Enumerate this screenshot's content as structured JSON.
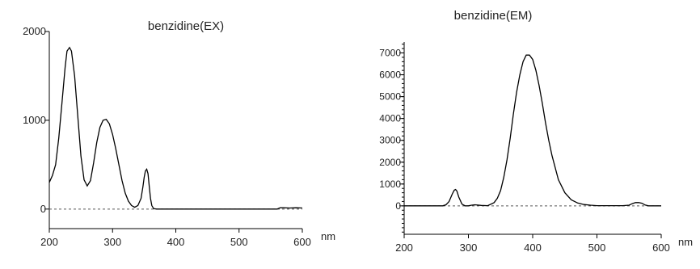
{
  "chart_data": [
    {
      "type": "line",
      "title": "benzidine(EX)",
      "xlabel": "",
      "ylabel": "",
      "x_unit": "nm",
      "xlim": [
        200,
        600
      ],
      "ylim": [
        -220,
        2000
      ],
      "x_ticks": [
        200,
        300,
        400,
        500,
        600
      ],
      "y_ticks": [
        0,
        1000,
        2000
      ],
      "zero_line": "dashed",
      "grid": false,
      "series": [
        {
          "x": [
            200,
            205,
            210,
            215,
            220,
            225,
            228,
            232,
            235,
            240,
            245,
            250,
            255,
            260,
            265,
            270,
            275,
            280,
            285,
            290,
            295,
            300,
            305,
            310,
            315,
            320,
            325,
            330,
            335,
            340,
            345,
            348,
            350,
            352,
            354,
            356,
            358,
            360,
            362,
            365,
            370,
            380,
            400,
            450,
            500,
            540,
            560,
            565,
            570,
            580,
            590,
            600
          ],
          "y": [
            300,
            380,
            500,
            800,
            1200,
            1600,
            1780,
            1820,
            1780,
            1500,
            1050,
            600,
            330,
            260,
            320,
            520,
            750,
            920,
            1000,
            1010,
            960,
            840,
            680,
            500,
            320,
            180,
            90,
            40,
            20,
            40,
            120,
            250,
            360,
            430,
            450,
            400,
            260,
            120,
            40,
            5,
            0,
            0,
            0,
            0,
            0,
            0,
            0,
            15,
            15,
            12,
            15,
            12
          ]
        }
      ]
    },
    {
      "type": "line",
      "title": "benzidine(EM)",
      "xlabel": "",
      "ylabel": "",
      "x_unit": "nm",
      "xlim": [
        200,
        600
      ],
      "ylim": [
        -1300,
        7500
      ],
      "x_ticks": [
        200,
        300,
        400,
        500,
        600
      ],
      "y_ticks": [
        0,
        1000,
        2000,
        3000,
        4000,
        5000,
        6000,
        7000
      ],
      "zero_line": "dashed",
      "grid": false,
      "series": [
        {
          "x": [
            200,
            230,
            260,
            265,
            270,
            275,
            278,
            280,
            282,
            285,
            290,
            295,
            300,
            305,
            310,
            320,
            330,
            340,
            345,
            350,
            355,
            360,
            365,
            370,
            375,
            380,
            385,
            390,
            395,
            400,
            405,
            410,
            415,
            420,
            425,
            430,
            440,
            450,
            460,
            470,
            480,
            490,
            500,
            520,
            540,
            550,
            555,
            560,
            565,
            570,
            575,
            580,
            600
          ],
          "y": [
            0,
            0,
            0,
            50,
            200,
            550,
            720,
            750,
            680,
            400,
            80,
            0,
            0,
            30,
            50,
            20,
            10,
            150,
            350,
            700,
            1300,
            2100,
            3100,
            4200,
            5200,
            6000,
            6600,
            6900,
            6900,
            6700,
            6200,
            5500,
            4700,
            3800,
            3000,
            2300,
            1200,
            600,
            280,
            130,
            60,
            30,
            10,
            10,
            10,
            30,
            100,
            150,
            150,
            120,
            40,
            0,
            0
          ]
        }
      ]
    }
  ]
}
